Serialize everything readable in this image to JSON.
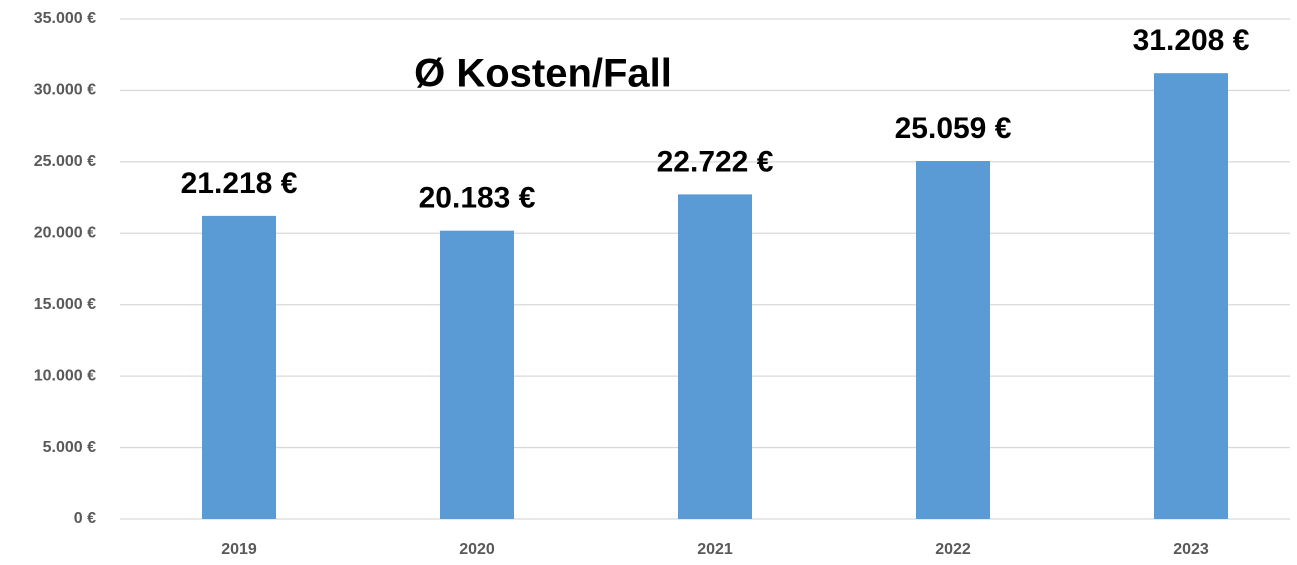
{
  "chart_data": {
    "type": "bar",
    "title": "Ø Kosten/Fall",
    "categories": [
      "2019",
      "2020",
      "2021",
      "2022",
      "2023"
    ],
    "values": [
      21218,
      20183,
      22722,
      25059,
      31208
    ],
    "value_labels": [
      "21.218 €",
      "20.183 €",
      "22.722 €",
      "25.059 €",
      "31.208 €"
    ],
    "color": "#5b9bd5",
    "ylim": [
      0,
      35000
    ],
    "yticks": [
      {
        "value": 0,
        "label": "0 €"
      },
      {
        "value": 5000,
        "label": "5.000 €"
      },
      {
        "value": 10000,
        "label": "10.000 €"
      },
      {
        "value": 15000,
        "label": "15.000 €"
      },
      {
        "value": 20000,
        "label": "20.000 €"
      },
      {
        "value": 25000,
        "label": "25.000 €"
      },
      {
        "value": 30000,
        "label": "30.000 €"
      },
      {
        "value": 35000,
        "label": "35.000 €"
      }
    ],
    "grid": true
  }
}
